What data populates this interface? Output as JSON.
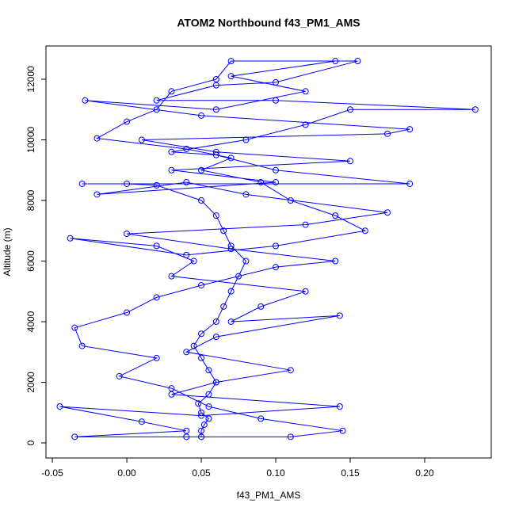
{
  "chart_data": {
    "type": "line",
    "markers": true,
    "title": "ATOM2 Northbound f43_PM1_AMS",
    "x_label": "f43_PM1_AMS",
    "y_label": "Altitude (m)",
    "color": "#0000ff",
    "xlim": [
      -0.0543,
      0.2447
    ],
    "ylim": [
      -497,
      13098
    ],
    "xticks": [
      -0.05,
      {
        "value": 0,
        "label": "0.00"
      },
      0.05,
      {
        "value": 0.1,
        "label": "0.10"
      },
      0.15,
      {
        "value": 0.2,
        "label": "0.20"
      }
    ],
    "yticks": [
      0,
      2000,
      4000,
      6000,
      8000,
      10000,
      12000
    ],
    "x": [
      0.05,
      0.05,
      0.052,
      0.055,
      0.05,
      0.048,
      0.055,
      0.06,
      0.055,
      0.05,
      0.045,
      0.05,
      0.06,
      0.065,
      0.07,
      0.075,
      0.08,
      0.07,
      0.065,
      0.06,
      0.05,
      0.02,
      0.0,
      -0.03,
      0.19,
      0.1,
      0.06,
      0.03,
      0.08,
      0.12,
      0.15,
      0.234,
      0.1,
      0.02,
      0.06,
      0.1,
      0.155,
      0.07,
      0.06,
      0.03,
      0.02,
      0.0,
      -0.02,
      0.04,
      0.07,
      0.05,
      0.09,
      0.11,
      0.14,
      0.16,
      0.1,
      0.04,
      -0.038,
      0.02,
      0.045,
      0.03,
      0.12,
      0.09,
      0.07,
      0.143,
      0.06,
      0.04,
      0.11,
      0.06,
      0.03,
      0.143,
      0.05,
      -0.045,
      0.01,
      0.04,
      -0.035,
      0.04,
      0.11,
      0.145,
      0.09,
      0.055,
      0.03,
      -0.005,
      0.02,
      -0.03,
      -0.035,
      0.0,
      0.02,
      0.05,
      0.1,
      0.14,
      0.07,
      0.0,
      0.12,
      0.175,
      0.08,
      0.04,
      -0.02,
      0.1,
      0.03,
      0.15,
      0.06,
      0.01,
      0.175,
      0.19,
      0.05,
      -0.028,
      0.06,
      0.12,
      0.07,
      0.14
    ],
    "y": [
      200,
      400,
      600,
      800,
      1000,
      1300,
      1600,
      2000,
      2400,
      2800,
      3200,
      3600,
      4000,
      4500,
      5000,
      5500,
      6000,
      6500,
      7000,
      7500,
      8000,
      8500,
      8550,
      8550,
      8550,
      9000,
      9500,
      9600,
      10000,
      10500,
      11000,
      11000,
      11300,
      11300,
      11800,
      11900,
      12600,
      12600,
      12000,
      11600,
      11000,
      10600,
      10050,
      9700,
      9400,
      9000,
      8600,
      8000,
      7500,
      7000,
      6500,
      6200,
      6750,
      6500,
      6000,
      5500,
      5000,
      4500,
      4000,
      4200,
      3500,
      3000,
      2400,
      2000,
      1600,
      1200,
      900,
      1200,
      700,
      400,
      200,
      200,
      200,
      400,
      800,
      1200,
      1800,
      2200,
      2800,
      3200,
      3800,
      4300,
      4800,
      5200,
      5800,
      6000,
      6400,
      6900,
      7200,
      7600,
      8200,
      8600,
      8200,
      8600,
      9000,
      9300,
      9600,
      10000,
      10200,
      10350,
      10800,
      11300,
      11000,
      11600,
      12100,
      12600
    ]
  }
}
